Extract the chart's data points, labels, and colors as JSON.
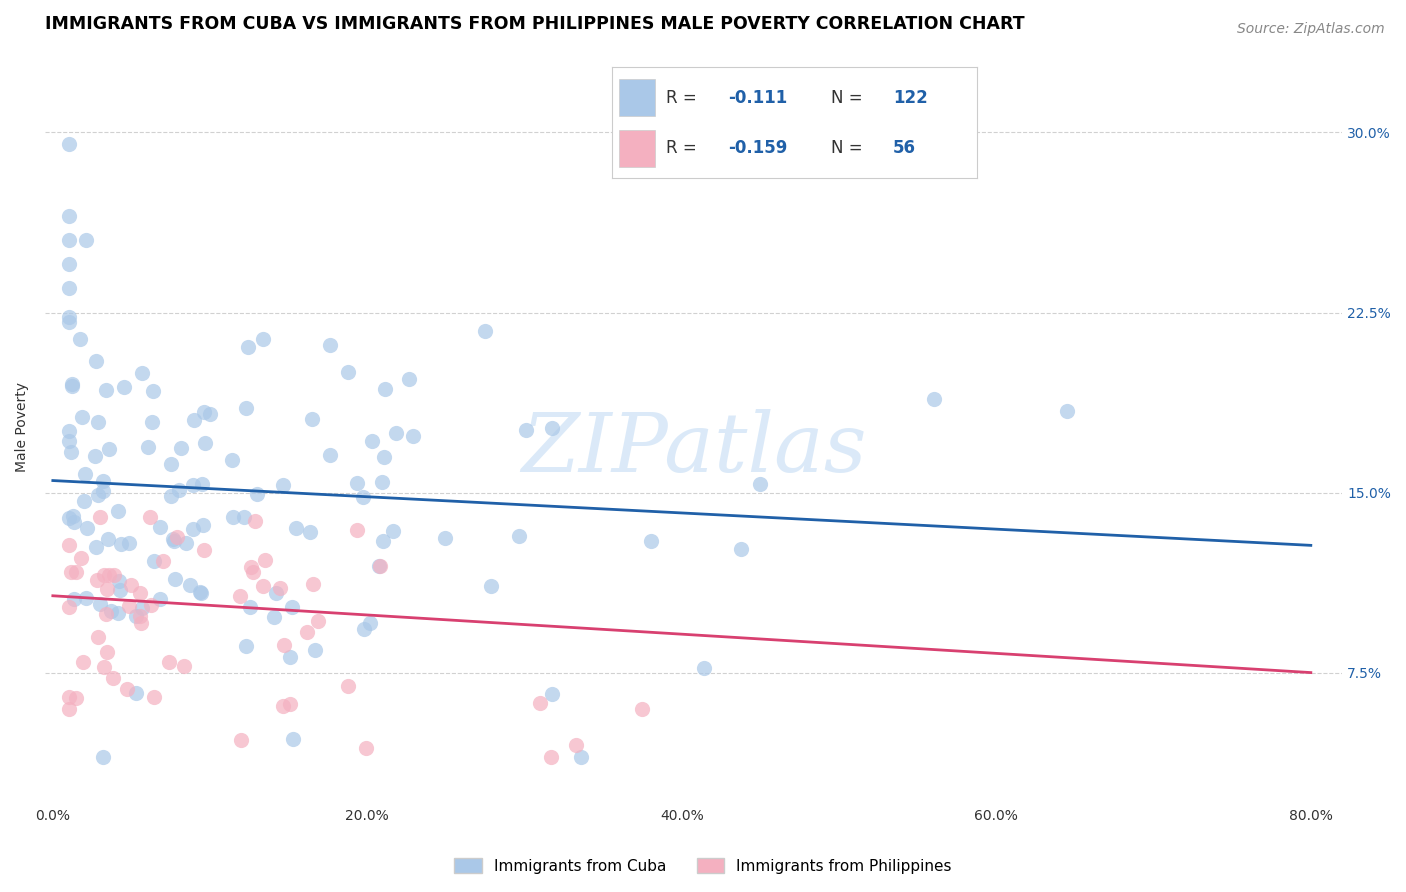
{
  "title": "IMMIGRANTS FROM CUBA VS IMMIGRANTS FROM PHILIPPINES MALE POVERTY CORRELATION CHART",
  "source": "Source: ZipAtlas.com",
  "xlabel_ticks": [
    "0.0%",
    "20.0%",
    "40.0%",
    "60.0%",
    "80.0%"
  ],
  "xlabel_tick_vals": [
    0.0,
    0.2,
    0.4,
    0.6,
    0.8
  ],
  "ylabel_ticks": [
    "7.5%",
    "15.0%",
    "22.5%",
    "30.0%"
  ],
  "ylabel_tick_vals": [
    0.075,
    0.15,
    0.225,
    0.3
  ],
  "xlim": [
    -0.005,
    0.82
  ],
  "ylim": [
    0.02,
    0.335
  ],
  "cuba_R": -0.111,
  "cuba_N": 122,
  "phil_R": -0.159,
  "phil_N": 56,
  "cuba_color": "#aac8e8",
  "cuba_line_color": "#2060a8",
  "phil_color": "#f4b0c0",
  "phil_line_color": "#d84070",
  "watermark": "ZIPatlas",
  "background_color": "#ffffff",
  "grid_color": "#cccccc",
  "title_fontsize": 12.5,
  "axis_label_fontsize": 10,
  "tick_fontsize": 10,
  "source_fontsize": 10,
  "cuba_trendline": [
    0.155,
    0.128
  ],
  "phil_trendline": [
    0.107,
    0.075
  ],
  "legend_r_cuba": "-0.111",
  "legend_n_cuba": "122",
  "legend_r_phil": "-0.159",
  "legend_n_phil": "56"
}
